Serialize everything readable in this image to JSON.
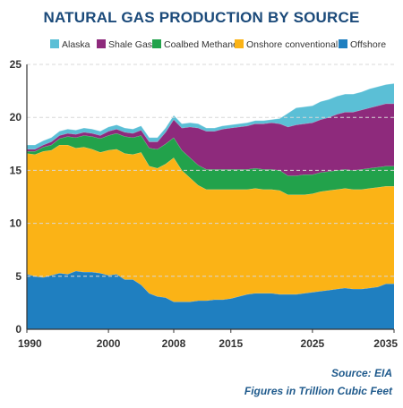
{
  "chart_data": {
    "type": "area",
    "stacked": true,
    "title": "NATURAL GAS PRODUCTION BY SOURCE",
    "xlabel": "",
    "ylabel": "",
    "xlim": [
      1990,
      2035
    ],
    "ylim": [
      0,
      25
    ],
    "x_ticks": [
      1990,
      2000,
      2008,
      2015,
      2025,
      2035
    ],
    "y_ticks": [
      0,
      5,
      10,
      15,
      20,
      25
    ],
    "grid": "horizontal",
    "legend_position": "top",
    "x": [
      1990,
      1991,
      1992,
      1993,
      1994,
      1995,
      1996,
      1997,
      1998,
      1999,
      2000,
      2001,
      2002,
      2003,
      2004,
      2005,
      2006,
      2007,
      2008,
      2009,
      2010,
      2011,
      2012,
      2013,
      2014,
      2015,
      2016,
      2017,
      2018,
      2019,
      2020,
      2021,
      2022,
      2023,
      2024,
      2025,
      2026,
      2027,
      2028,
      2029,
      2030,
      2031,
      2032,
      2033,
      2034,
      2035
    ],
    "series": [
      {
        "name": "Offshore",
        "color": "#1f7fc0",
        "values": [
          5.2,
          5.0,
          4.9,
          5.1,
          5.3,
          5.2,
          5.5,
          5.4,
          5.4,
          5.3,
          5.1,
          5.2,
          4.7,
          4.7,
          4.2,
          3.4,
          3.1,
          3.0,
          2.6,
          2.6,
          2.6,
          2.7,
          2.7,
          2.8,
          2.8,
          2.9,
          3.1,
          3.3,
          3.4,
          3.4,
          3.4,
          3.3,
          3.3,
          3.3,
          3.4,
          3.5,
          3.6,
          3.7,
          3.8,
          3.9,
          3.8,
          3.8,
          3.9,
          4.0,
          4.3,
          4.3
        ]
      },
      {
        "name": "Onshore conventional",
        "color": "#fbb316",
        "values": [
          11.4,
          11.5,
          11.9,
          11.8,
          12.1,
          12.2,
          11.6,
          11.8,
          11.6,
          11.4,
          11.8,
          11.8,
          11.9,
          11.8,
          12.5,
          12.0,
          12.1,
          12.6,
          13.6,
          12.4,
          11.7,
          10.9,
          10.5,
          10.4,
          10.4,
          10.3,
          10.1,
          9.9,
          9.9,
          9.8,
          9.8,
          9.8,
          9.4,
          9.4,
          9.3,
          9.3,
          9.4,
          9.4,
          9.4,
          9.4,
          9.4,
          9.4,
          9.4,
          9.4,
          9.2,
          9.2
        ]
      },
      {
        "name": "Coalbed Methane",
        "color": "#22a24b",
        "values": [
          0.2,
          0.3,
          0.4,
          0.5,
          0.6,
          0.8,
          1.0,
          1.1,
          1.2,
          1.3,
          1.4,
          1.5,
          1.6,
          1.6,
          1.6,
          1.7,
          1.8,
          1.9,
          1.9,
          1.9,
          1.9,
          1.9,
          1.9,
          1.9,
          1.9,
          1.9,
          1.9,
          1.9,
          1.9,
          1.9,
          1.9,
          1.9,
          1.8,
          1.8,
          1.9,
          1.8,
          1.8,
          1.8,
          1.8,
          1.8,
          1.8,
          1.9,
          1.9,
          1.9,
          1.9,
          1.9
        ]
      },
      {
        "name": "Shale Gas",
        "color": "#8e2a7c",
        "values": [
          0.2,
          0.2,
          0.2,
          0.3,
          0.3,
          0.3,
          0.3,
          0.3,
          0.3,
          0.3,
          0.4,
          0.4,
          0.4,
          0.4,
          0.5,
          0.6,
          0.7,
          1.1,
          1.7,
          2.1,
          2.9,
          3.5,
          3.6,
          3.6,
          3.8,
          3.9,
          4.0,
          4.1,
          4.2,
          4.3,
          4.4,
          4.4,
          4.6,
          4.8,
          4.8,
          4.9,
          5.0,
          5.1,
          5.3,
          5.4,
          5.5,
          5.6,
          5.7,
          5.8,
          5.9,
          5.9
        ]
      },
      {
        "name": "Alaska",
        "color": "#5bbfd6",
        "values": [
          0.4,
          0.4,
          0.4,
          0.4,
          0.4,
          0.4,
          0.4,
          0.4,
          0.4,
          0.4,
          0.4,
          0.4,
          0.4,
          0.4,
          0.4,
          0.4,
          0.4,
          0.4,
          0.4,
          0.4,
          0.4,
          0.4,
          0.3,
          0.3,
          0.3,
          0.3,
          0.3,
          0.3,
          0.3,
          0.3,
          0.3,
          0.5,
          1.3,
          1.6,
          1.6,
          1.6,
          1.7,
          1.7,
          1.7,
          1.7,
          1.7,
          1.7,
          1.8,
          1.8,
          1.8,
          1.9
        ]
      }
    ],
    "legend_order": [
      "Alaska",
      "Shale Gas",
      "Coalbed Methane",
      "Onshore conventional",
      "Offshore"
    ],
    "source": "Source: EIA",
    "units_note": "Figures in Trillion Cubic Feet"
  }
}
